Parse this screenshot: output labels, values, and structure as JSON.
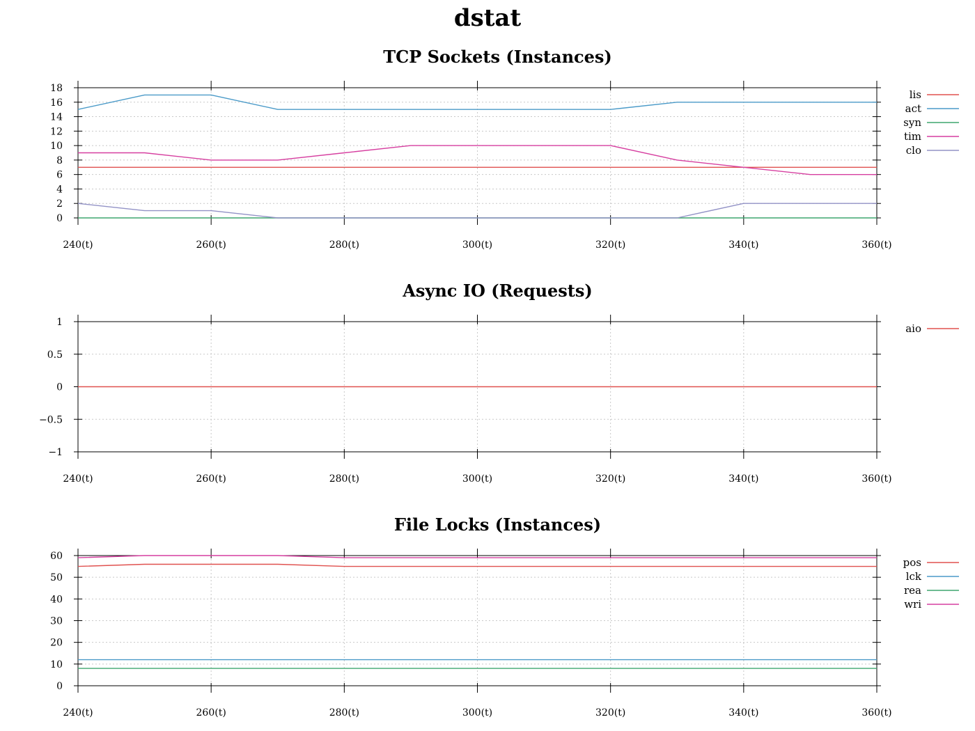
{
  "title": "dstat",
  "colors": {
    "red": "#e0514f",
    "blue": "#4a9ac8",
    "green": "#3fa66e",
    "magenta": "#d63fa0",
    "lavender": "#9292c6"
  },
  "chart_data": [
    {
      "type": "line",
      "title": "TCP Sockets (Instances)",
      "x": [
        240,
        250,
        260,
        270,
        280,
        290,
        300,
        310,
        320,
        330,
        340,
        350,
        360
      ],
      "xticks": [
        240,
        260,
        280,
        300,
        320,
        340,
        360
      ],
      "xtick_labels": [
        "240(t)",
        "260(t)",
        "280(t)",
        "300(t)",
        "320(t)",
        "340(t)",
        "360(t)"
      ],
      "xlim": [
        240,
        360
      ],
      "ylim": [
        0,
        18
      ],
      "yticks": [
        0,
        2,
        4,
        6,
        8,
        10,
        12,
        14,
        16,
        18
      ],
      "ytick_labels": [
        "0",
        "2",
        "4",
        "6",
        "8",
        "10",
        "12",
        "14",
        "16",
        "18"
      ],
      "grid": true,
      "legend": "right",
      "series": [
        {
          "name": "lis",
          "color": "#e0514f",
          "values": [
            7,
            7,
            7,
            7,
            7,
            7,
            7,
            7,
            7,
            7,
            7,
            7,
            7
          ]
        },
        {
          "name": "act",
          "color": "#4a9ac8",
          "values": [
            15,
            17,
            17,
            15,
            15,
            15,
            15,
            15,
            15,
            16,
            16,
            16,
            16
          ]
        },
        {
          "name": "syn",
          "color": "#3fa66e",
          "values": [
            0,
            0,
            0,
            0,
            0,
            0,
            0,
            0,
            0,
            0,
            0,
            0,
            0
          ]
        },
        {
          "name": "tim",
          "color": "#d63fa0",
          "values": [
            9,
            9,
            8,
            8,
            9,
            10,
            10,
            10,
            10,
            8,
            7,
            6,
            6
          ]
        },
        {
          "name": "clo",
          "color": "#9292c6",
          "values": [
            2,
            1,
            1,
            0,
            0,
            0,
            0,
            0,
            0,
            0,
            2,
            2,
            2
          ]
        }
      ]
    },
    {
      "type": "line",
      "title": "Async IO (Requests)",
      "x": [
        240,
        250,
        260,
        270,
        280,
        290,
        300,
        310,
        320,
        330,
        340,
        350,
        360
      ],
      "xticks": [
        240,
        260,
        280,
        300,
        320,
        340,
        360
      ],
      "xtick_labels": [
        "240(t)",
        "260(t)",
        "280(t)",
        "300(t)",
        "320(t)",
        "340(t)",
        "360(t)"
      ],
      "xlim": [
        240,
        360
      ],
      "ylim": [
        -1,
        1
      ],
      "yticks": [
        -1,
        -0.5,
        0,
        0.5,
        1
      ],
      "ytick_labels": [
        "−1",
        "−0.5",
        "0",
        "0.5",
        "1"
      ],
      "grid": true,
      "legend": "right",
      "series": [
        {
          "name": "aio",
          "color": "#e0514f",
          "values": [
            0,
            0,
            0,
            0,
            0,
            0,
            0,
            0,
            0,
            0,
            0,
            0,
            0
          ]
        }
      ]
    },
    {
      "type": "line",
      "title": "File Locks (Instances)",
      "x": [
        240,
        250,
        260,
        270,
        280,
        290,
        300,
        310,
        320,
        330,
        340,
        350,
        360
      ],
      "xticks": [
        240,
        260,
        280,
        300,
        320,
        340,
        360
      ],
      "xtick_labels": [
        "240(t)",
        "260(t)",
        "280(t)",
        "300(t)",
        "320(t)",
        "340(t)",
        "360(t)"
      ],
      "xlim": [
        240,
        360
      ],
      "ylim": [
        0,
        60
      ],
      "yticks": [
        0,
        10,
        20,
        30,
        40,
        50,
        60
      ],
      "ytick_labels": [
        "0",
        "10",
        "20",
        "30",
        "40",
        "50",
        "60"
      ],
      "grid": true,
      "legend": "right",
      "series": [
        {
          "name": "pos",
          "color": "#e0514f",
          "values": [
            55,
            56,
            56,
            56,
            55,
            55,
            55,
            55,
            55,
            55,
            55,
            55,
            55
          ]
        },
        {
          "name": "lck",
          "color": "#4a9ac8",
          "values": [
            12,
            12,
            12,
            12,
            12,
            12,
            12,
            12,
            12,
            12,
            12,
            12,
            12
          ]
        },
        {
          "name": "rea",
          "color": "#3fa66e",
          "values": [
            8,
            8,
            8,
            8,
            8,
            8,
            8,
            8,
            8,
            8,
            8,
            8,
            8
          ]
        },
        {
          "name": "wri",
          "color": "#d63fa0",
          "values": [
            59,
            60,
            60,
            60,
            59,
            59,
            59,
            59,
            59,
            59,
            59,
            59,
            59
          ]
        }
      ]
    }
  ]
}
